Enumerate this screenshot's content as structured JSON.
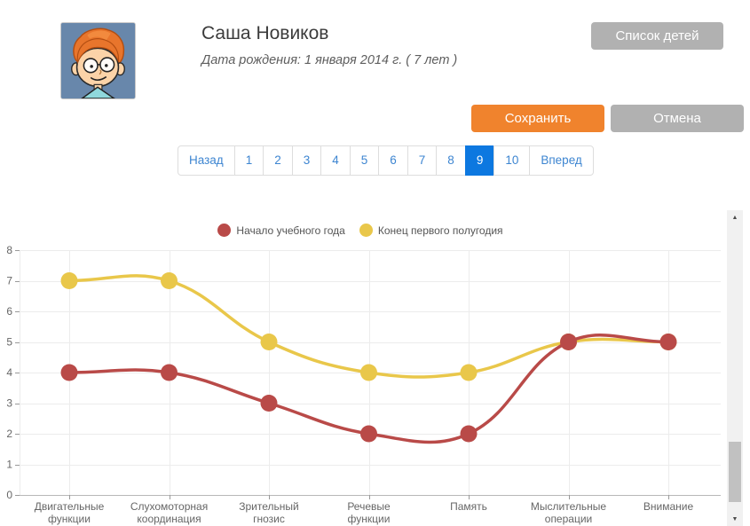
{
  "header": {
    "name": "Саша Новиков",
    "birth_info": "Дата рождения: 1 января 2014 г. ( 7 лет )",
    "list_button_label": "Список детей"
  },
  "actions": {
    "save_label": "Сохранить",
    "cancel_label": "Отмена"
  },
  "pagination": {
    "prev_label": "Назад",
    "next_label": "Вперед",
    "pages": [
      "1",
      "2",
      "3",
      "4",
      "5",
      "6",
      "7",
      "8",
      "9",
      "10"
    ],
    "active_page": "9"
  },
  "icons": {
    "scroll_up": "▲",
    "scroll_down": "▼"
  },
  "colors": {
    "accent_orange": "#f0832d",
    "button_gray": "#b1b1b1",
    "pagination_active_blue": "#0d78e0",
    "pagination_link_blue": "#3d85d1",
    "series_red": "#b94a48",
    "series_yellow": "#e9c74a",
    "grid_line": "#ececec",
    "axis_line": "#b8b8b8",
    "tick_mark": "#999999",
    "axis_text": "#666666"
  },
  "chart_data": {
    "type": "line",
    "categories": [
      [
        "Двигательные",
        "функции"
      ],
      [
        "Слухомоторная",
        "координация"
      ],
      [
        "Зрительный",
        "гнозис"
      ],
      [
        "Речевые",
        "функции"
      ],
      [
        "Память"
      ],
      [
        "Мыслительные",
        "операции"
      ],
      [
        "Внимание"
      ]
    ],
    "series": [
      {
        "name": "Начало учебного года",
        "color": "#b94a48",
        "values": [
          4,
          4,
          3,
          2,
          2,
          5,
          5
        ]
      },
      {
        "name": "Конец первого полугодия",
        "color": "#e9c74a",
        "values": [
          7,
          7,
          5,
          4,
          4,
          5,
          5
        ]
      }
    ],
    "ylim": [
      0,
      8
    ],
    "yticks": [
      0,
      1,
      2,
      3,
      4,
      5,
      6,
      7,
      8
    ],
    "grid": true,
    "legend_position": "top",
    "point_radius": 9.5,
    "line_tension": 0.4
  }
}
